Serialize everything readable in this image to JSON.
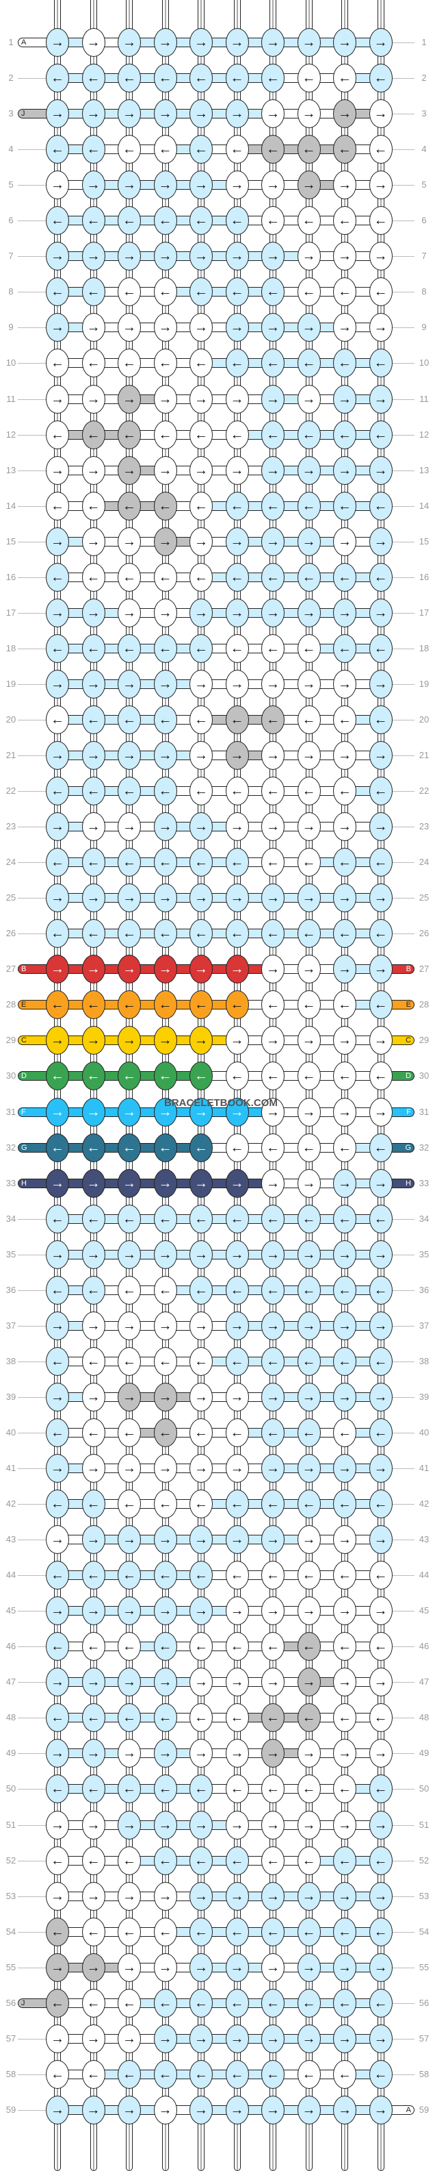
{
  "watermark": "BRACELETBOOK.COM",
  "colors": {
    "L": "#cdeefd",
    "W": "#ffffff",
    "G": "#c0c0c0",
    "R": "#d93636",
    "O": "#f9a11f",
    "Y": "#fccf00",
    "D": "#3aa352",
    "S": "#29c0f7",
    "T": "#2e7490",
    "N": "#434f78"
  },
  "arrows": {
    "right": "→",
    "left": "←"
  },
  "left_tags": [
    {
      "row": 1,
      "letter": "A",
      "color": "W"
    },
    {
      "row": 3,
      "letter": "J",
      "color": "G"
    },
    {
      "row": 27,
      "letter": "B",
      "color": "R"
    },
    {
      "row": 28,
      "letter": "E",
      "color": "O"
    },
    {
      "row": 29,
      "letter": "C",
      "color": "Y"
    },
    {
      "row": 30,
      "letter": "D",
      "color": "D"
    },
    {
      "row": 31,
      "letter": "F",
      "color": "S"
    },
    {
      "row": 32,
      "letter": "G",
      "color": "T"
    },
    {
      "row": 33,
      "letter": "H",
      "color": "N"
    },
    {
      "row": 56,
      "letter": "J",
      "color": "G"
    }
  ],
  "right_tags": [
    {
      "row": 27,
      "letter": "B",
      "color": "R"
    },
    {
      "row": 28,
      "letter": "E",
      "color": "O"
    },
    {
      "row": 29,
      "letter": "C",
      "color": "Y"
    },
    {
      "row": 30,
      "letter": "D",
      "color": "D"
    },
    {
      "row": 31,
      "letter": "F",
      "color": "S"
    },
    {
      "row": 32,
      "letter": "G",
      "color": "T"
    },
    {
      "row": 33,
      "letter": "H",
      "color": "N"
    },
    {
      "row": 59,
      "letter": "A",
      "color": "W"
    }
  ],
  "rows": [
    "LWLLLLLLLL",
    "LLLLLLLWWL",
    "LLLLLLWWGW",
    "LLWWLWGGGW",
    "WLLLLWWGWW",
    "LLLLLLWWWW",
    "LLLLLLLWWW",
    "LLWWLLLWWW",
    "LWWWWLLLWW",
    "WWWWWLLLLL",
    "WWGWWWLWLL",
    "WGGWWWLLLL",
    "WWGWWWLLLL",
    "WWGGWLLLLL",
    "LWWGWLLLWL",
    "LWWWWLLLLL",
    "LLWWLLLLLL",
    "LLLLLWWWLL",
    "LLLLWWWWWL",
    "WLLLWGGWWL",
    "LLLLWGWWWL",
    "LLLLWWWWWL",
    "LWWLLWWWWL",
    "LLLLLLWWLL",
    "LLLLLLLLLL",
    "LLLLLLLLLL",
    "RRRRRRWWLL",
    "OOOOOOWWWL",
    "YYYYYWWWWW",
    "DDDDDWWWWW",
    "SSSSSSWWWW",
    "TTTTTWWWWL",
    "NNNNNNWWLL",
    "LLLLLLLLLL",
    "LLLLLLLLLL",
    "LLWWLLLLLL",
    "LWWWWLLLLL",
    "LWWWWLLLLL",
    "LWGGWWLLLL",
    "LWWGWWLLWL",
    "LWWWWWLLLL",
    "LLWWWLLLLL",
    "WLLLLLLWWL",
    "LLLLLWWWWW",
    "LLLLLWWWWW",
    "LWWLWWWGWW",
    "LLLLWWWGWW",
    "LLLLWWGGWW",
    "LLWLWWGWWW",
    "LLLLLWWWWL",
    "WWLLLWWWWL",
    "WWWLLLWWLL",
    "WWWWLLLLLL",
    "GWWWLLLLLL",
    "GGWWLLWLLL",
    "GWWLLLLLLL",
    "WWWLLLLLLL",
    "WWLLLLLWWL",
    "LLLWLLLLLL"
  ]
}
